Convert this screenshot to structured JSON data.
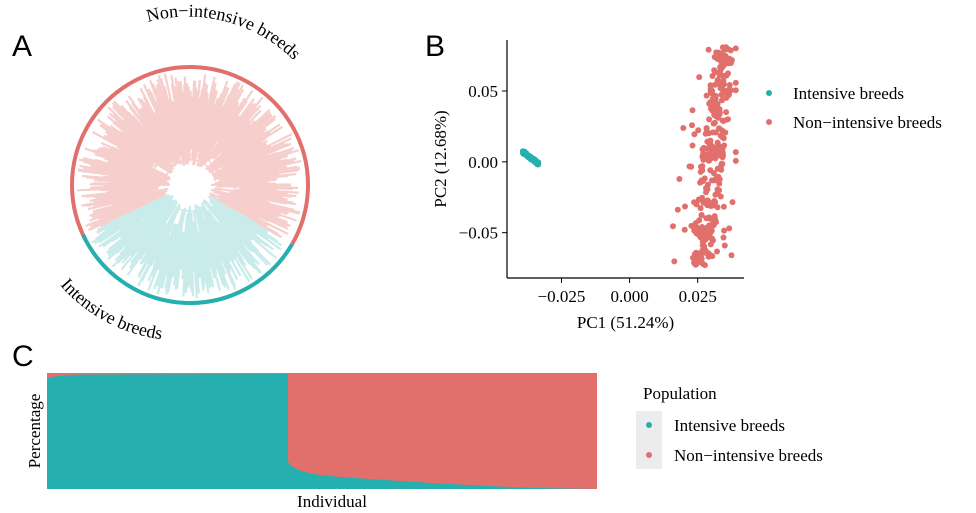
{
  "panels": {
    "a": "A",
    "b": "B",
    "c": "C"
  },
  "colors": {
    "intensive": "#26AFAF",
    "non_intensive": "#E1706C",
    "intensive_light": "#C9ECEB",
    "non_intensive_light": "#F6CFCD"
  },
  "chart_data": [
    {
      "type": "circular_tree",
      "labels": {
        "non_intensive": "Non−intensive breeds",
        "intensive": "Intensive breeds"
      },
      "clades": [
        {
          "name": "Non−intensive breeds",
          "arc_start_deg": -118,
          "arc_end_deg": 120
        },
        {
          "name": "Intensive breeds",
          "arc_start_deg": 120,
          "arc_end_deg": 245
        }
      ]
    },
    {
      "type": "scatter",
      "xlabel": "PC1 (51.24%)",
      "ylabel": "PC2 (12.68%)",
      "xlim": [
        -0.045,
        0.042
      ],
      "ylim": [
        -0.082,
        0.086
      ],
      "xticks": [
        -0.025,
        0.0,
        0.025
      ],
      "xtick_labels": [
        "−0.025",
        "0.000",
        "0.025"
      ],
      "yticks": [
        -0.05,
        0.0,
        0.05
      ],
      "ytick_labels": [
        "−0.05",
        "0.00",
        "0.05"
      ],
      "legend": [
        "Intensive breeds",
        "Non−intensive breeds"
      ],
      "legend_position": "right",
      "series": [
        {
          "name": "Intensive breeds",
          "x_range": [
            -0.0395,
            -0.0335
          ],
          "y_range": [
            -0.0035,
            0.0075
          ],
          "n": 70
        },
        {
          "name": "Non−intensive breeds",
          "x_range": [
            0.013,
            0.039
          ],
          "y_range": [
            -0.073,
            0.081
          ],
          "n": 330
        }
      ]
    },
    {
      "type": "area",
      "xlabel": "Individual",
      "ylabel": "Percentage",
      "legend_title": "Population",
      "legend": [
        "Intensive breeds",
        "Non−intensive breeds"
      ],
      "legend_position": "right",
      "split_fraction": 0.438,
      "series": [
        {
          "name": "Intensive breeds",
          "share_start": 1.0,
          "share_end": 0.0
        },
        {
          "name": "Non−intensive breeds",
          "share_start": 0.0,
          "share_end": 1.0
        }
      ]
    }
  ]
}
